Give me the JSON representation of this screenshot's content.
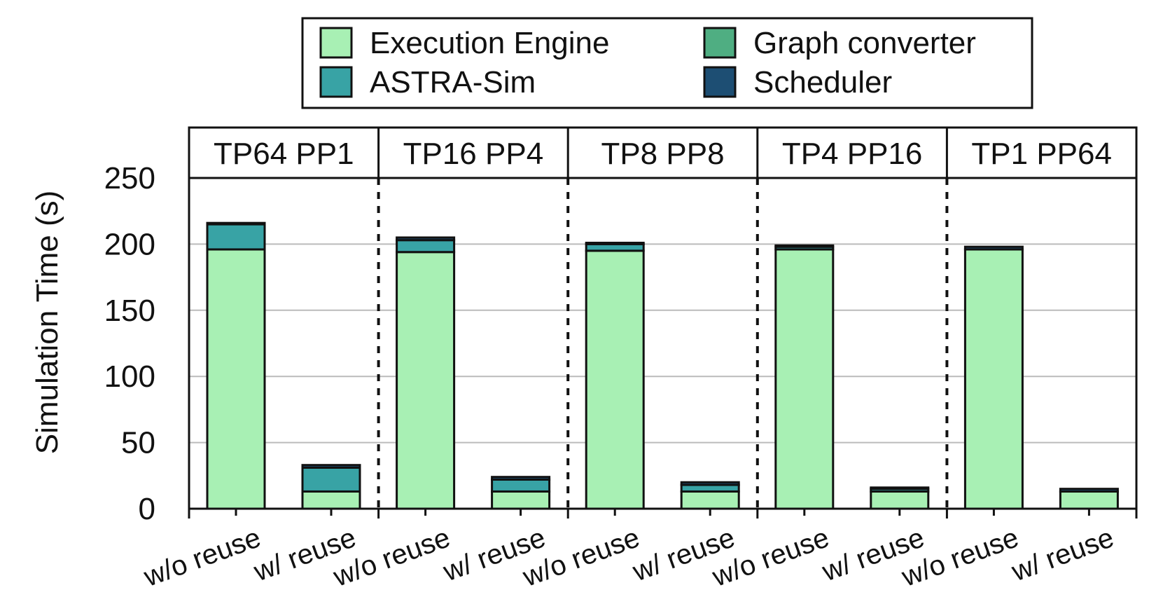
{
  "chart_data": {
    "type": "bar",
    "stacked": true,
    "ylabel": "Simulation Time (s)",
    "ylim": [
      0,
      250
    ],
    "yticks": [
      0,
      50,
      100,
      150,
      200,
      250
    ],
    "grid": true,
    "legend_position": "top-center",
    "groups": [
      "TP64 PP1",
      "TP16 PP4",
      "TP8 PP8",
      "TP4 PP16",
      "TP1 PP64"
    ],
    "categories": [
      "w/o reuse",
      "w/ reuse"
    ],
    "legend": [
      {
        "name": "Execution Engine",
        "color": "#a8f0b4"
      },
      {
        "name": "Graph converter",
        "color": "#4fae82"
      },
      {
        "name": "ASTRA-Sim",
        "color": "#38a3a5"
      },
      {
        "name": "Scheduler",
        "color": "#1d4e73"
      }
    ],
    "series": [
      {
        "name": "Execution Engine",
        "color": "#a8f0b4",
        "values": [
          [
            196,
            13
          ],
          [
            194,
            13
          ],
          [
            195,
            13
          ],
          [
            196,
            13
          ],
          [
            196,
            13
          ]
        ]
      },
      {
        "name": "Graph converter",
        "color": "#4fae82",
        "values": [
          [
            0,
            0
          ],
          [
            0,
            0
          ],
          [
            0,
            0
          ],
          [
            0,
            0
          ],
          [
            0,
            0
          ]
        ]
      },
      {
        "name": "ASTRA-Sim",
        "color": "#38a3a5",
        "values": [
          [
            19,
            18
          ],
          [
            9,
            9
          ],
          [
            5,
            5
          ],
          [
            2,
            2
          ],
          [
            0,
            0
          ]
        ]
      },
      {
        "name": "Scheduler",
        "color": "#1d4e73",
        "values": [
          [
            1,
            2
          ],
          [
            2,
            2
          ],
          [
            1,
            2
          ],
          [
            1,
            1
          ],
          [
            2,
            2
          ]
        ]
      }
    ]
  }
}
